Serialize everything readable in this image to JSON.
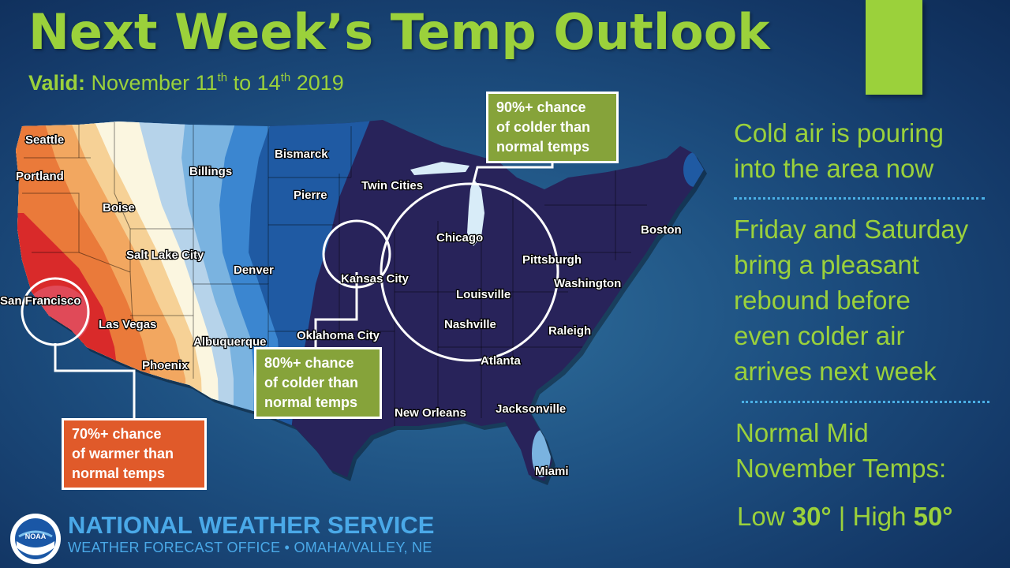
{
  "header": {
    "title": "Next Week’s Temp Outlook",
    "valid_label": "Valid:",
    "valid_text_1": " November 11",
    "valid_sup_1": "th",
    "valid_text_2": " to 14",
    "valid_sup_2": "th",
    "valid_text_3": " 2019"
  },
  "map": {
    "cities": [
      "Seattle",
      "Portland",
      "Boise",
      "Billings",
      "Bismarck",
      "Pierre",
      "Twin Cities",
      "Salt Lake City",
      "Denver",
      "San Francisco",
      "Las Vegas",
      "Phoenix",
      "Albuquerque",
      "Kansas City",
      "Oklahoma City",
      "Chicago",
      "Louisville",
      "Nashville",
      "Pittsburgh",
      "Washington",
      "Boston",
      "Raleigh",
      "Atlanta",
      "New Orleans",
      "Jacksonville",
      "Miami"
    ],
    "colors": {
      "cold_90": "#28235a",
      "warm_70": "#d92a2a",
      "accent": "#9bd13b"
    }
  },
  "callouts": {
    "north": [
      "90%+ chance",
      "of colder than",
      "normal temps"
    ],
    "central": [
      "80%+ chance",
      "of colder than",
      "normal temps"
    ],
    "west": [
      "70%+ chance",
      "of warmer than",
      "normal temps"
    ]
  },
  "sidebar": {
    "para1": [
      "Cold air is pouring",
      "into the area now"
    ],
    "para2": [
      "Friday and Saturday",
      "bring a pleasant",
      "rebound before",
      "even colder air",
      "arrives next week"
    ],
    "normal": [
      "Normal Mid",
      "November Temps:"
    ],
    "low_label": "Low ",
    "low_value": "30°",
    "separator": " | ",
    "high_label": "High ",
    "high_value": "50°"
  },
  "footer": {
    "logo_text": "NOAA",
    "agency": "NATIONAL WEATHER SERVICE",
    "office": "WEATHER FORECAST OFFICE • OMAHA/VALLEY, NE"
  }
}
